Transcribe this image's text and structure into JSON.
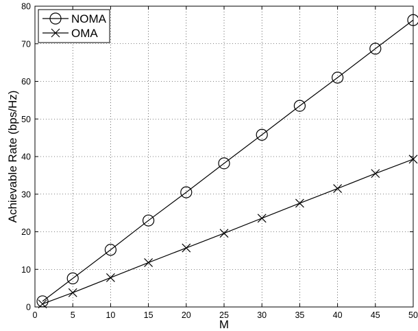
{
  "chart_data": {
    "type": "line",
    "title": "",
    "xlabel": "M",
    "ylabel": "Achievable Rate (bps/Hz)",
    "xlim": [
      0,
      50
    ],
    "ylim": [
      0,
      80
    ],
    "xticks": [
      0,
      5,
      10,
      15,
      20,
      25,
      30,
      35,
      40,
      45,
      50
    ],
    "yticks": [
      0,
      10,
      20,
      30,
      40,
      50,
      60,
      70,
      80
    ],
    "grid": true,
    "legend_position": "top-left",
    "x": [
      1,
      5,
      10,
      15,
      20,
      25,
      30,
      35,
      40,
      45,
      50
    ],
    "series": [
      {
        "name": "NOMA",
        "marker": "circle",
        "color": "#000000",
        "values": [
          1.5,
          7.6,
          15.2,
          23.0,
          30.5,
          38.2,
          45.8,
          53.5,
          61.0,
          68.7,
          76.3
        ]
      },
      {
        "name": "OMA",
        "marker": "x",
        "color": "#000000",
        "values": [
          0.8,
          3.8,
          7.8,
          11.8,
          15.7,
          19.6,
          23.6,
          27.6,
          31.5,
          35.5,
          39.3
        ]
      }
    ]
  }
}
